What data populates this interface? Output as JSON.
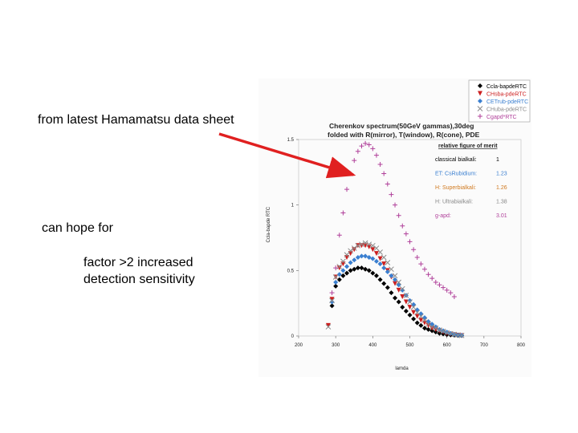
{
  "annotations": {
    "datasheet_note": "from latest Hamamatsu data sheet",
    "hope_note": "can hope for",
    "factor_line1": "factor >2 increased",
    "factor_line2": "detection sensitivity"
  },
  "arrow_color": "#e02020",
  "chart_data": {
    "type": "scatter",
    "title_line1": "Cherenkov spectrum(50GeV gammas),30deg",
    "title_line2": "folded with R(mirror), T(window), R(cone), PDE",
    "xlabel": "lamda",
    "ylabel": "Ccla-bapde RTC",
    "xlim": [
      200,
      800
    ],
    "ylim": [
      0,
      1.5
    ],
    "xticks": [
      "200",
      "300",
      "400",
      "500",
      "600",
      "700",
      "800"
    ],
    "yticks": [
      "0",
      "0.5",
      "1",
      "1.5"
    ],
    "merit_header": "relative figure of merit",
    "merit_rows": [
      {
        "label": "classical bialkali:",
        "value": "1",
        "color": "#000000"
      },
      {
        "label": "ET: CsRubidium:",
        "value": "1.23",
        "color": "#3a7fd0"
      },
      {
        "label": "H: Superbialkali:",
        "value": "1.26",
        "color": "#d07a20"
      },
      {
        "label": "H: Ultrabialkali:",
        "value": "1.38",
        "color": "#888888"
      },
      {
        "label": "g-apd:",
        "value": "3.01",
        "color": "#b0409a"
      }
    ],
    "legend_position": "top-right",
    "series": [
      {
        "name": "Ccla-bapdeRTC",
        "marker": "diamond",
        "color": "#000000",
        "x": [
          290,
          300,
          310,
          320,
          330,
          340,
          350,
          360,
          370,
          380,
          390,
          400,
          410,
          420,
          430,
          440,
          450,
          460,
          470,
          480,
          490,
          500,
          510,
          520,
          530,
          540,
          550,
          560,
          570,
          580,
          590,
          600,
          610,
          620,
          630,
          640
        ],
        "y": [
          0.23,
          0.38,
          0.43,
          0.46,
          0.48,
          0.5,
          0.51,
          0.52,
          0.52,
          0.51,
          0.5,
          0.48,
          0.46,
          0.43,
          0.4,
          0.37,
          0.33,
          0.29,
          0.26,
          0.22,
          0.19,
          0.16,
          0.13,
          0.1,
          0.08,
          0.06,
          0.05,
          0.04,
          0.03,
          0.02,
          0.015,
          0.01,
          0.008,
          0.006,
          0.004,
          0.003
        ]
      },
      {
        "name": "CHsba-pdeRTC",
        "marker": "triangle-down",
        "color": "#cc1f1f",
        "x": [
          280,
          290,
          300,
          310,
          320,
          330,
          340,
          350,
          360,
          370,
          380,
          390,
          400,
          410,
          420,
          430,
          440,
          450,
          460,
          470,
          480,
          490,
          500,
          510,
          520,
          530,
          540,
          550,
          560,
          570,
          580,
          590,
          600,
          610,
          620,
          630,
          640
        ],
        "y": [
          0.08,
          0.28,
          0.45,
          0.52,
          0.55,
          0.6,
          0.63,
          0.66,
          0.69,
          0.69,
          0.69,
          0.68,
          0.66,
          0.63,
          0.59,
          0.55,
          0.5,
          0.45,
          0.4,
          0.35,
          0.3,
          0.26,
          0.22,
          0.18,
          0.15,
          0.12,
          0.1,
          0.08,
          0.06,
          0.05,
          0.04,
          0.03,
          0.02,
          0.015,
          0.01,
          0.006,
          0.003
        ]
      },
      {
        "name": "CETrub-pdeRTC",
        "marker": "diamond",
        "color": "#3a7fd0",
        "x": [
          290,
          300,
          310,
          320,
          330,
          340,
          350,
          360,
          370,
          380,
          390,
          400,
          410,
          420,
          430,
          440,
          450,
          460,
          470,
          480,
          490,
          500,
          510,
          520,
          530,
          540,
          550,
          560,
          570,
          580,
          590,
          600,
          610,
          620,
          630,
          640
        ],
        "y": [
          0.26,
          0.41,
          0.47,
          0.5,
          0.53,
          0.56,
          0.58,
          0.6,
          0.61,
          0.61,
          0.6,
          0.59,
          0.57,
          0.55,
          0.52,
          0.49,
          0.46,
          0.43,
          0.39,
          0.35,
          0.31,
          0.27,
          0.24,
          0.2,
          0.17,
          0.14,
          0.11,
          0.09,
          0.07,
          0.05,
          0.04,
          0.03,
          0.02,
          0.012,
          0.008,
          0.005
        ]
      },
      {
        "name": "CHuba-pdeRTC",
        "marker": "cross",
        "color": "#8a8a8a",
        "x": [
          280,
          290,
          300,
          310,
          320,
          330,
          340,
          350,
          360,
          370,
          380,
          390,
          400,
          410,
          420,
          430,
          440,
          450,
          460,
          470,
          480,
          490,
          500,
          510,
          520,
          530,
          540,
          550,
          560,
          570,
          580,
          590,
          600,
          610,
          620,
          630,
          640
        ],
        "y": [
          0.07,
          0.27,
          0.45,
          0.53,
          0.57,
          0.62,
          0.65,
          0.67,
          0.69,
          0.7,
          0.71,
          0.7,
          0.69,
          0.67,
          0.64,
          0.6,
          0.56,
          0.51,
          0.46,
          0.41,
          0.36,
          0.31,
          0.26,
          0.22,
          0.18,
          0.15,
          0.12,
          0.09,
          0.07,
          0.06,
          0.045,
          0.035,
          0.025,
          0.018,
          0.012,
          0.008,
          0.004
        ]
      },
      {
        "name": "Cgapd*RTC",
        "marker": "plus",
        "color": "#b0409a",
        "x": [
          290,
          300,
          310,
          320,
          330,
          340,
          350,
          360,
          370,
          380,
          390,
          400,
          410,
          420,
          430,
          440,
          450,
          460,
          470,
          480,
          490,
          500,
          510,
          520,
          530,
          540,
          550,
          560,
          570,
          580,
          590,
          600,
          610,
          620
        ],
        "y": [
          0.33,
          0.52,
          0.77,
          0.94,
          1.12,
          1.24,
          1.34,
          1.41,
          1.45,
          1.47,
          1.46,
          1.43,
          1.38,
          1.31,
          1.24,
          1.16,
          1.08,
          1.0,
          0.92,
          0.84,
          0.78,
          0.72,
          0.66,
          0.6,
          0.55,
          0.51,
          0.47,
          0.44,
          0.41,
          0.39,
          0.37,
          0.35,
          0.33,
          0.3
        ]
      }
    ]
  }
}
